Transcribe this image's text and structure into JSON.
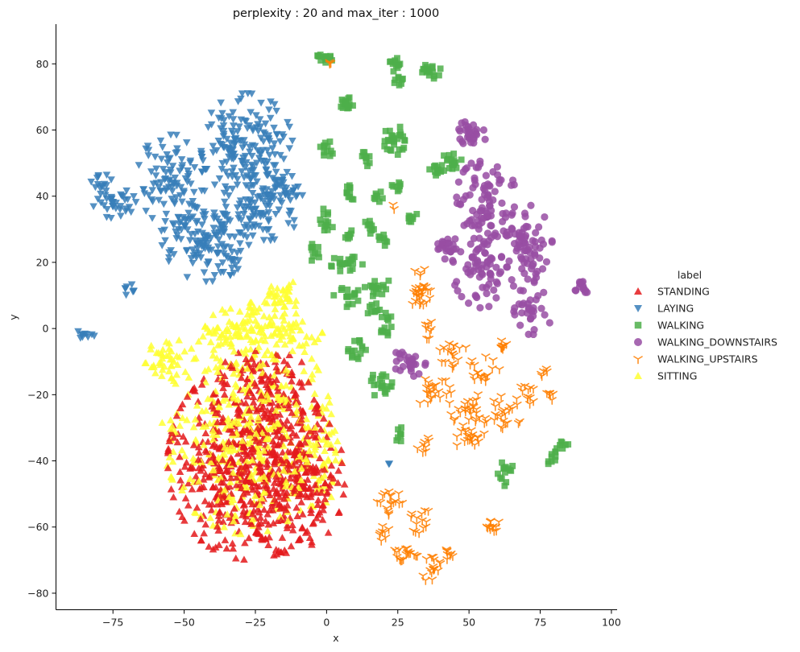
{
  "chart_data": {
    "type": "scatter",
    "title": "perplexity : 20 and max_iter : 1000",
    "xlabel": "x",
    "ylabel": "y",
    "xlim": [
      -95,
      102
    ],
    "ylim": [
      -85,
      92
    ],
    "xticks": [
      -75,
      -50,
      -25,
      0,
      25,
      50,
      75,
      100
    ],
    "xtick_labels": [
      "−75",
      "−50",
      "−25",
      "0",
      "25",
      "50",
      "75",
      "100"
    ],
    "yticks": [
      -80,
      -60,
      -40,
      -20,
      0,
      20,
      40,
      60,
      80
    ],
    "ytick_labels": [
      "−80",
      "−60",
      "−40",
      "−20",
      "0",
      "20",
      "40",
      "60",
      "80"
    ],
    "grid": false,
    "legend": {
      "title": "label",
      "position": "right",
      "entries": [
        "STANDING",
        "LAYING",
        "WALKING",
        "WALKING_DOWNSTAIRS",
        "WALKING_UPSTAIRS",
        "SITTING"
      ]
    },
    "series": [
      {
        "name": "STANDING",
        "color": "#e41a1c",
        "marker": "triangle-up",
        "clusters": [
          {
            "cx": -27,
            "cy": -40,
            "rx": 25,
            "ry": 26,
            "n": 560
          },
          {
            "cx": -12,
            "cy": -45,
            "rx": 16,
            "ry": 20,
            "n": 160
          },
          {
            "cx": -22,
            "cy": -15,
            "rx": 14,
            "ry": 8,
            "n": 70
          }
        ]
      },
      {
        "name": "LAYING",
        "color": "#377eb8",
        "marker": "triangle-down",
        "clusters": [
          {
            "cx": -28,
            "cy": 55,
            "rx": 14,
            "ry": 14,
            "n": 180
          },
          {
            "cx": -42,
            "cy": 28,
            "rx": 14,
            "ry": 12,
            "n": 160
          },
          {
            "cx": -55,
            "cy": 45,
            "rx": 10,
            "ry": 12,
            "n": 90
          },
          {
            "cx": -22,
            "cy": 38,
            "rx": 12,
            "ry": 10,
            "n": 90
          },
          {
            "cx": -75,
            "cy": 38,
            "rx": 7,
            "ry": 4,
            "n": 35
          },
          {
            "cx": -80,
            "cy": 44,
            "rx": 4,
            "ry": 3,
            "n": 14
          },
          {
            "cx": -14,
            "cy": 42,
            "rx": 5,
            "ry": 4,
            "n": 20
          },
          {
            "cx": -69,
            "cy": 12,
            "rx": 2,
            "ry": 2,
            "n": 8
          },
          {
            "cx": -85,
            "cy": -2,
            "rx": 3,
            "ry": 1.5,
            "n": 10
          },
          {
            "cx": 22,
            "cy": -42,
            "rx": 0.5,
            "ry": 1,
            "n": 2
          }
        ]
      },
      {
        "name": "WALKING",
        "color": "#4daf4a",
        "marker": "square",
        "clusters": [
          {
            "cx": -1,
            "cy": 81,
            "rx": 2.5,
            "ry": 2,
            "n": 14
          },
          {
            "cx": 23,
            "cy": 80,
            "rx": 2.5,
            "ry": 2,
            "n": 12
          },
          {
            "cx": 25,
            "cy": 75,
            "rx": 2,
            "ry": 1.5,
            "n": 8
          },
          {
            "cx": 36,
            "cy": 78,
            "rx": 3.5,
            "ry": 2.5,
            "n": 18
          },
          {
            "cx": 7,
            "cy": 68,
            "rx": 2.5,
            "ry": 2.5,
            "n": 16
          },
          {
            "cx": 24,
            "cy": 57,
            "rx": 3.5,
            "ry": 4,
            "n": 28
          },
          {
            "cx": 0,
            "cy": 54,
            "rx": 2,
            "ry": 2.5,
            "n": 12
          },
          {
            "cx": 13,
            "cy": 51,
            "rx": 2,
            "ry": 2,
            "n": 10
          },
          {
            "cx": 44,
            "cy": 50,
            "rx": 4,
            "ry": 2.5,
            "n": 18
          },
          {
            "cx": 38,
            "cy": 48,
            "rx": 2,
            "ry": 1.5,
            "n": 10
          },
          {
            "cx": 8,
            "cy": 41,
            "rx": 2,
            "ry": 2.5,
            "n": 12
          },
          {
            "cx": 18,
            "cy": 40,
            "rx": 2,
            "ry": 1.5,
            "n": 8
          },
          {
            "cx": 25,
            "cy": 43,
            "rx": 2,
            "ry": 2,
            "n": 8
          },
          {
            "cx": 0,
            "cy": 33,
            "rx": 2.5,
            "ry": 3,
            "n": 14
          },
          {
            "cx": 30,
            "cy": 33,
            "rx": 2,
            "ry": 2,
            "n": 8
          },
          {
            "cx": 15,
            "cy": 31,
            "rx": 2.5,
            "ry": 2,
            "n": 10
          },
          {
            "cx": 8,
            "cy": 28,
            "rx": 2,
            "ry": 2,
            "n": 8
          },
          {
            "cx": 20,
            "cy": 27,
            "rx": 2,
            "ry": 2,
            "n": 8
          },
          {
            "cx": -4,
            "cy": 23,
            "rx": 2,
            "ry": 2.5,
            "n": 10
          },
          {
            "cx": 7,
            "cy": 20,
            "rx": 5,
            "ry": 2.5,
            "n": 22
          },
          {
            "cx": 18,
            "cy": 13,
            "rx": 4,
            "ry": 3,
            "n": 18
          },
          {
            "cx": 7,
            "cy": 10,
            "rx": 4,
            "ry": 3,
            "n": 18
          },
          {
            "cx": 16,
            "cy": 6,
            "rx": 3,
            "ry": 1.5,
            "n": 10
          },
          {
            "cx": 21,
            "cy": 3,
            "rx": 2,
            "ry": 1.5,
            "n": 6
          },
          {
            "cx": 21,
            "cy": -1,
            "rx": 2,
            "ry": 2,
            "n": 8
          },
          {
            "cx": 11,
            "cy": -7,
            "rx": 3,
            "ry": 3,
            "n": 16
          },
          {
            "cx": 19,
            "cy": -17,
            "rx": 3.5,
            "ry": 3.5,
            "n": 22
          },
          {
            "cx": 26,
            "cy": -32,
            "rx": 2,
            "ry": 2,
            "n": 8
          },
          {
            "cx": 63,
            "cy": -44,
            "rx": 2.5,
            "ry": 3.5,
            "n": 14
          },
          {
            "cx": 80,
            "cy": -39,
            "rx": 2.5,
            "ry": 2.5,
            "n": 10
          },
          {
            "cx": 84,
            "cy": -35,
            "rx": 2,
            "ry": 1.5,
            "n": 6
          }
        ]
      },
      {
        "name": "WALKING_DOWNSTAIRS",
        "color": "#984ea3",
        "marker": "circle",
        "clusters": [
          {
            "cx": 50,
            "cy": 58,
            "rx": 5,
            "ry": 4,
            "n": 30
          },
          {
            "cx": 56,
            "cy": 40,
            "rx": 9,
            "ry": 10,
            "n": 70
          },
          {
            "cx": 55,
            "cy": 20,
            "rx": 10,
            "ry": 12,
            "n": 90
          },
          {
            "cx": 70,
            "cy": 25,
            "rx": 8,
            "ry": 12,
            "n": 70
          },
          {
            "cx": 43,
            "cy": 25,
            "rx": 4,
            "ry": 4,
            "n": 22
          },
          {
            "cx": 72,
            "cy": 5,
            "rx": 7,
            "ry": 6,
            "n": 30
          },
          {
            "cx": 29,
            "cy": -10,
            "rx": 5,
            "ry": 4,
            "n": 30
          },
          {
            "cx": 90,
            "cy": 13,
            "rx": 3,
            "ry": 2,
            "n": 14
          }
        ]
      },
      {
        "name": "WALKING_UPSTAIRS",
        "color": "#ff7f00",
        "marker": "tri-down",
        "clusters": [
          {
            "cx": 33,
            "cy": 12,
            "rx": 3,
            "ry": 7,
            "n": 30
          },
          {
            "cx": 36,
            "cy": 0,
            "rx": 1.5,
            "ry": 3,
            "n": 8
          },
          {
            "cx": 44,
            "cy": -8,
            "rx": 5,
            "ry": 4,
            "n": 18
          },
          {
            "cx": 55,
            "cy": -13,
            "rx": 5,
            "ry": 4,
            "n": 18
          },
          {
            "cx": 62,
            "cy": -5,
            "rx": 3,
            "ry": 2,
            "n": 10
          },
          {
            "cx": 38,
            "cy": -20,
            "rx": 5,
            "ry": 5,
            "n": 24
          },
          {
            "cx": 50,
            "cy": -25,
            "rx": 6,
            "ry": 5,
            "n": 26
          },
          {
            "cx": 62,
            "cy": -25,
            "rx": 6,
            "ry": 5,
            "n": 24
          },
          {
            "cx": 70,
            "cy": -20,
            "rx": 3,
            "ry": 3,
            "n": 12
          },
          {
            "cx": 79,
            "cy": -20,
            "rx": 1.5,
            "ry": 1.5,
            "n": 6
          },
          {
            "cx": 76,
            "cy": -13,
            "rx": 1.5,
            "ry": 1.5,
            "n": 5
          },
          {
            "cx": 50,
            "cy": -33,
            "rx": 6,
            "ry": 3,
            "n": 20
          },
          {
            "cx": 34,
            "cy": -35,
            "rx": 2,
            "ry": 2.5,
            "n": 8
          },
          {
            "cx": 22,
            "cy": -53,
            "rx": 4,
            "ry": 4,
            "n": 18
          },
          {
            "cx": 33,
            "cy": -58,
            "rx": 3,
            "ry": 4,
            "n": 14
          },
          {
            "cx": 20,
            "cy": -62,
            "rx": 2,
            "ry": 2,
            "n": 8
          },
          {
            "cx": 58,
            "cy": -60,
            "rx": 3,
            "ry": 2,
            "n": 12
          },
          {
            "cx": 28,
            "cy": -68,
            "rx": 4,
            "ry": 3,
            "n": 18
          },
          {
            "cx": 37,
            "cy": -73,
            "rx": 3,
            "ry": 3.5,
            "n": 16
          },
          {
            "cx": 42,
            "cy": -69,
            "rx": 2,
            "ry": 2,
            "n": 8
          },
          {
            "cx": 1,
            "cy": 80,
            "rx": 1,
            "ry": 1,
            "n": 3
          },
          {
            "cx": 23,
            "cy": 37,
            "rx": 1,
            "ry": 1,
            "n": 2
          }
        ]
      },
      {
        "name": "SITTING",
        "color": "#ffff33",
        "marker": "triangle-up",
        "clusters": [
          {
            "cx": -28,
            "cy": -30,
            "rx": 26,
            "ry": 28,
            "n": 380
          },
          {
            "cx": -22,
            "cy": 0,
            "rx": 18,
            "ry": 7,
            "n": 130
          },
          {
            "cx": -15,
            "cy": 10,
            "rx": 6,
            "ry": 4,
            "n": 30
          },
          {
            "cx": -55,
            "cy": -10,
            "rx": 8,
            "ry": 6,
            "n": 45
          },
          {
            "cx": -4,
            "cy": -40,
            "rx": 8,
            "ry": 12,
            "n": 60
          }
        ]
      }
    ]
  }
}
